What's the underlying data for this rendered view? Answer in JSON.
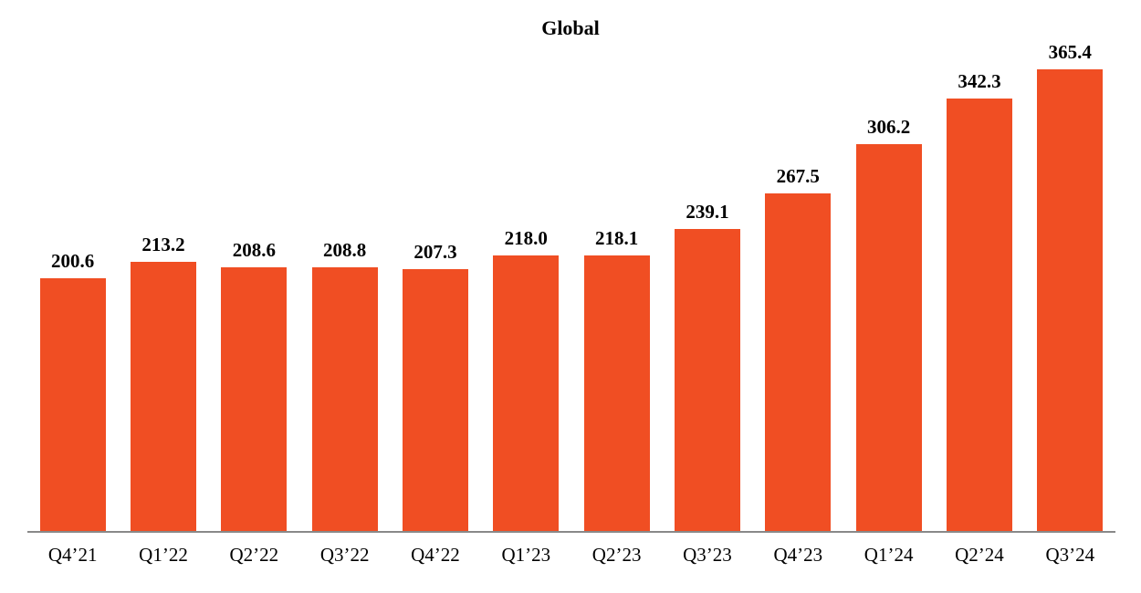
{
  "chart_data": {
    "type": "bar",
    "title": "Global",
    "categories": [
      "Q4’21",
      "Q1’22",
      "Q2’22",
      "Q3’22",
      "Q4’22",
      "Q1’23",
      "Q2’23",
      "Q3’23",
      "Q4’23",
      "Q1’24",
      "Q2’24",
      "Q3’24"
    ],
    "values": [
      200.6,
      213.2,
      208.6,
      208.8,
      207.3,
      218.0,
      218.1,
      239.1,
      267.5,
      306.2,
      342.3,
      365.4
    ],
    "value_labels": [
      "200.6",
      "213.2",
      "208.6",
      "208.8",
      "207.3",
      "218.0",
      "218.1",
      "239.1",
      "267.5",
      "306.2",
      "342.3",
      "365.4"
    ],
    "xlabel": "",
    "ylabel": "",
    "ylim": [
      0,
      420
    ],
    "grid": false,
    "legend": "none",
    "value_labels_shown": true,
    "colors": {
      "bar": "#F04E23",
      "axis_line": "#898989",
      "text": "#000000",
      "background": "#FFFFFF"
    }
  }
}
